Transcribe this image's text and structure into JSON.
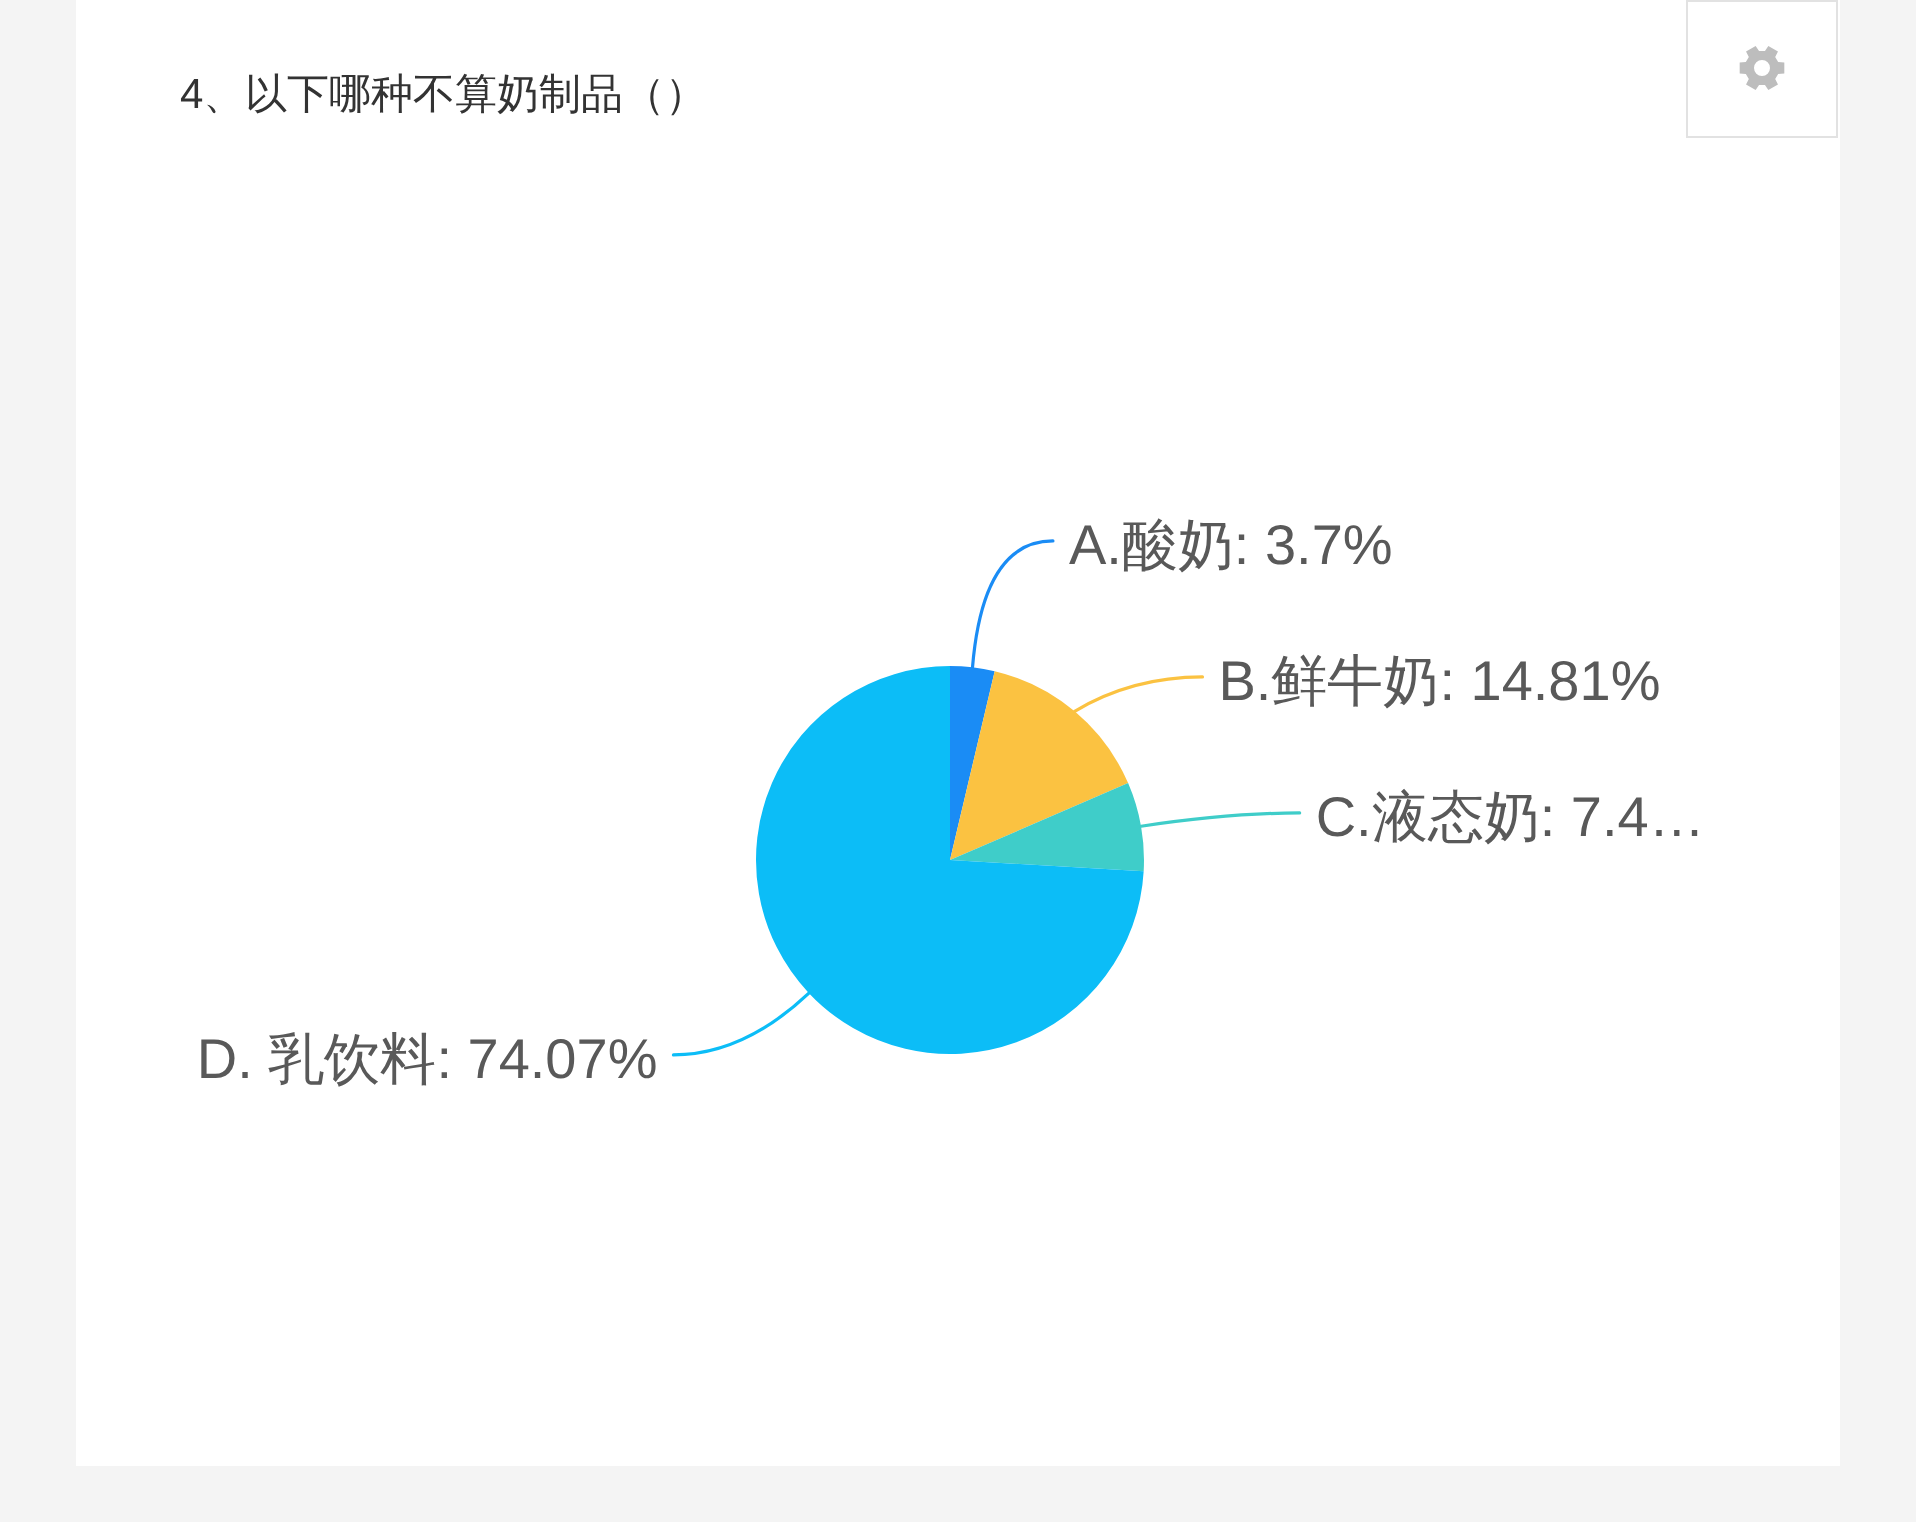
{
  "chart_data": {
    "type": "pie",
    "title": "4、以下哪种不算奶制品（）",
    "categories": [
      "A.酸奶",
      "B.鲜牛奶",
      "C.液态奶",
      "D. 乳饮料"
    ],
    "values": [
      3.7,
      14.81,
      7.41,
      74.07
    ],
    "colors": [
      "#1a8cf5",
      "#fbc241",
      "#3fcdc9",
      "#0cbdf7"
    ],
    "value_labels": [
      "3.7%",
      "14.81%",
      "7.4…",
      "74.07%"
    ]
  }
}
